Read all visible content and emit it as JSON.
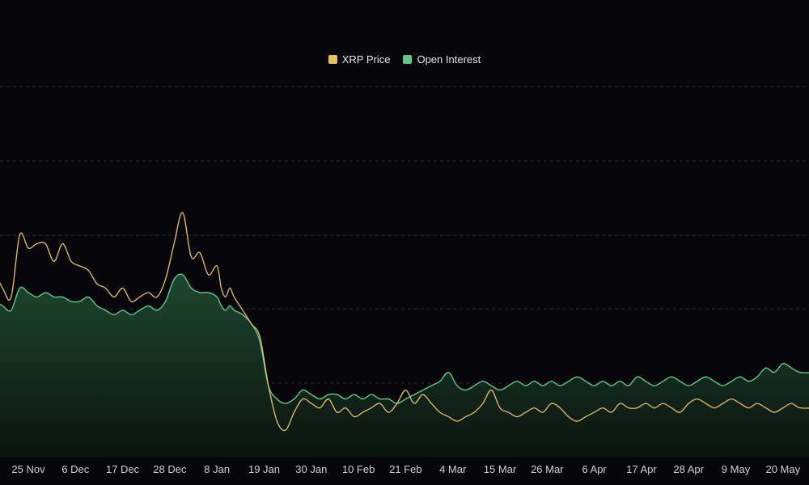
{
  "colors": {
    "background": "#07070b",
    "gridline": "#2a2a30",
    "price_line": "#e8c060",
    "oi_line": "#5ec98a",
    "oi_fill_top": "#1f4a30",
    "oi_fill_bottom": "#0b1510"
  },
  "chart_data": {
    "type": "area",
    "title": "",
    "xlabel": "",
    "ylabel": "",
    "grid": true,
    "legend_position": "top-center",
    "x_ticks": [
      "25 Nov",
      "6 Dec",
      "17 Dec",
      "28 Dec",
      "8 Jan",
      "19 Jan",
      "30 Jan",
      "10 Feb",
      "21 Feb",
      "4 Mar",
      "15 Mar",
      "26 Mar",
      "6 Apr",
      "17 Apr",
      "28 Apr",
      "9 May",
      "20 May"
    ],
    "ylim": [
      0,
      1
    ],
    "x_days": [
      -9,
      -6,
      -4,
      -2,
      0,
      2,
      4,
      6,
      8,
      10,
      12,
      14,
      16,
      18,
      20,
      22,
      24,
      26,
      28,
      30,
      32,
      34,
      36,
      38,
      40,
      42,
      44,
      45,
      46,
      47,
      48,
      50,
      52,
      54,
      56,
      58,
      60,
      62,
      64,
      66,
      68,
      70,
      72,
      74,
      76,
      78,
      80,
      82,
      84,
      86,
      88,
      90,
      92,
      94,
      96,
      98,
      100,
      102,
      104,
      106,
      108,
      110,
      112,
      114,
      116,
      118,
      120,
      122,
      124,
      126,
      128,
      130,
      132,
      134,
      136,
      138,
      140,
      142,
      144,
      146,
      148,
      150,
      152,
      154,
      156,
      158,
      160,
      162,
      164,
      166,
      168,
      170,
      172,
      174,
      176,
      178,
      180,
      184
    ],
    "series": [
      {
        "name": "XRP Price",
        "color": "#e8c060",
        "values": [
          0.44,
          0.38,
          0.36,
          0.5,
          0.47,
          0.48,
          0.48,
          0.44,
          0.48,
          0.44,
          0.43,
          0.42,
          0.39,
          0.38,
          0.36,
          0.38,
          0.35,
          0.36,
          0.37,
          0.36,
          0.4,
          0.48,
          0.55,
          0.45,
          0.46,
          0.41,
          0.43,
          0.38,
          0.36,
          0.38,
          0.36,
          0.33,
          0.3,
          0.27,
          0.16,
          0.08,
          0.06,
          0.1,
          0.13,
          0.12,
          0.11,
          0.13,
          0.1,
          0.11,
          0.09,
          0.1,
          0.11,
          0.12,
          0.1,
          0.12,
          0.15,
          0.12,
          0.14,
          0.12,
          0.1,
          0.09,
          0.08,
          0.09,
          0.1,
          0.12,
          0.15,
          0.11,
          0.1,
          0.09,
          0.1,
          0.11,
          0.1,
          0.12,
          0.11,
          0.09,
          0.08,
          0.09,
          0.1,
          0.11,
          0.1,
          0.12,
          0.11,
          0.11,
          0.12,
          0.11,
          0.12,
          0.11,
          0.1,
          0.12,
          0.13,
          0.12,
          0.11,
          0.12,
          0.13,
          0.12,
          0.11,
          0.12,
          0.11,
          0.1,
          0.11,
          0.12,
          0.11,
          0.11
        ]
      },
      {
        "name": "Open Interest",
        "color": "#5ec98a",
        "values": [
          0.36,
          0.34,
          0.33,
          0.38,
          0.37,
          0.36,
          0.37,
          0.36,
          0.36,
          0.35,
          0.35,
          0.36,
          0.34,
          0.33,
          0.32,
          0.33,
          0.32,
          0.33,
          0.34,
          0.33,
          0.35,
          0.4,
          0.41,
          0.38,
          0.37,
          0.37,
          0.36,
          0.34,
          0.33,
          0.34,
          0.33,
          0.32,
          0.3,
          0.26,
          0.16,
          0.13,
          0.12,
          0.13,
          0.15,
          0.14,
          0.13,
          0.14,
          0.14,
          0.13,
          0.14,
          0.13,
          0.14,
          0.13,
          0.13,
          0.12,
          0.13,
          0.14,
          0.15,
          0.16,
          0.17,
          0.19,
          0.16,
          0.15,
          0.16,
          0.17,
          0.16,
          0.15,
          0.16,
          0.17,
          0.16,
          0.17,
          0.16,
          0.17,
          0.16,
          0.17,
          0.18,
          0.17,
          0.16,
          0.17,
          0.16,
          0.17,
          0.16,
          0.18,
          0.17,
          0.16,
          0.17,
          0.18,
          0.17,
          0.16,
          0.17,
          0.18,
          0.17,
          0.16,
          0.17,
          0.18,
          0.17,
          0.18,
          0.2,
          0.19,
          0.21,
          0.2,
          0.19,
          0.19
        ]
      }
    ]
  }
}
